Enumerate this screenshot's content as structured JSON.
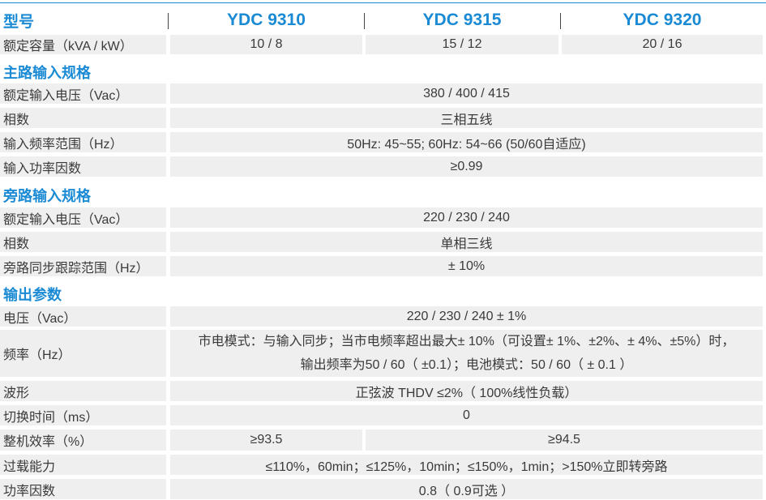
{
  "header": {
    "label": "型号",
    "models": [
      "YDC 9310",
      "YDC 9315",
      "YDC 9320"
    ]
  },
  "capacity": {
    "label": "额定容量（kVA / kW）",
    "values": [
      "10 / 8",
      "15 / 12",
      "20 / 16"
    ]
  },
  "sections": {
    "main_input": {
      "title": "主路输入规格",
      "rows": [
        {
          "label": "额定输入电压（Vac）",
          "value": "380 / 400 / 415"
        },
        {
          "label": "相数",
          "value": "三相五线"
        },
        {
          "label": "输入频率范围（Hz）",
          "value": "50Hz: 45~55; 60Hz: 54~66 (50/60自适应)"
        },
        {
          "label": "输入功率因数",
          "value": "≥0.99"
        }
      ]
    },
    "bypass_input": {
      "title": "旁路输入规格",
      "rows": [
        {
          "label": "额定输入电压（Vac）",
          "value": "220 / 230 / 240"
        },
        {
          "label": "相数",
          "value": "单相三线"
        },
        {
          "label": "旁路同步跟踪范围（Hz）",
          "value": "± 10%"
        }
      ]
    },
    "output": {
      "title": "输出参数",
      "voltage": {
        "label": "电压（Vac）",
        "value": "220 / 230 / 240 ± 1%"
      },
      "frequency": {
        "label": "频率（Hz）",
        "line1": "市电模式：与输入同步；当市电频率超出最大± 10%（可设置± 1%、±2%、± 4%、±5%）时，",
        "line2": "输出频率为50 / 60（ ±0.1）；电池模式：50 / 60（ ± 0.1 ）"
      },
      "waveform": {
        "label": "波形",
        "value": "正弦波 THDV ≤2%（ 100%线性负载）"
      },
      "transfer": {
        "label": "切换时间（ms）",
        "value": "0"
      },
      "efficiency": {
        "label": "整机效率（%）",
        "values": [
          "≥93.5",
          "≥94.5"
        ]
      },
      "overload": {
        "label": "过载能力",
        "value": "≤110%，60min；≤125%，10min；≤150%，1min；>150%立即转旁路"
      },
      "pf": {
        "label": "功率因数",
        "value": "0.8（ 0.9可选 ）"
      }
    }
  },
  "colors": {
    "accent": "#1a8ad4",
    "row_bg": "#efefef",
    "text": "#3a3a3a"
  }
}
